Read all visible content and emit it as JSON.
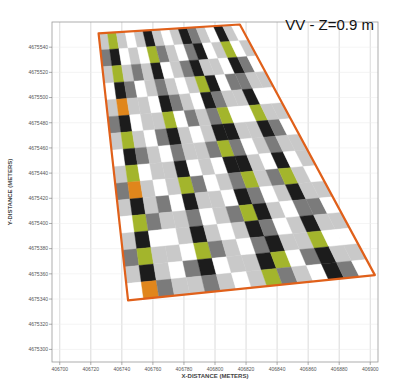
{
  "chart_data": {
    "type": "heatmap",
    "title": "VV - Z=0.9 m",
    "x_label": "X-DISTANCE (METERS)",
    "y_label": "Y-DISTANCE (METERS)",
    "xlim": [
      406695,
      406905
    ],
    "ylim": [
      4675290,
      4675560
    ],
    "xticks": [
      406700,
      406720,
      406740,
      406760,
      406780,
      406800,
      406820,
      406840,
      406860,
      406880,
      406900
    ],
    "yticks": [
      4675300,
      4675320,
      4675340,
      4675360,
      4675380,
      4675400,
      4675420,
      4675440,
      4675460,
      4675480,
      4675500,
      4675520,
      4675540
    ],
    "grid": true,
    "survey_corners": {
      "x": [
        406725,
        406816,
        406903,
        406744
      ],
      "y": [
        4675551,
        4675558,
        4675359,
        4675339
      ]
    },
    "color_range": [
      0,
      5
    ],
    "cells": [
      [
        1,
        4,
        1,
        0,
        1,
        3,
        1,
        0,
        1,
        3,
        2,
        1,
        0,
        3,
        1,
        0
      ],
      [
        2,
        3,
        0,
        1,
        0,
        4,
        2,
        1,
        0,
        2,
        3,
        0,
        1,
        4,
        0,
        1
      ],
      [
        1,
        4,
        1,
        2,
        1,
        3,
        0,
        1,
        2,
        3,
        1,
        1,
        0,
        3,
        2,
        0
      ],
      [
        0,
        3,
        2,
        0,
        1,
        2,
        1,
        0,
        1,
        4,
        3,
        0,
        2,
        2,
        1,
        1
      ],
      [
        1,
        5,
        1,
        1,
        0,
        3,
        2,
        1,
        0,
        3,
        2,
        1,
        1,
        3,
        0,
        0
      ],
      [
        2,
        3,
        0,
        1,
        1,
        4,
        0,
        2,
        1,
        2,
        4,
        0,
        0,
        4,
        1,
        1
      ],
      [
        1,
        4,
        1,
        0,
        2,
        3,
        1,
        0,
        1,
        3,
        3,
        1,
        1,
        3,
        2,
        0
      ],
      [
        0,
        3,
        2,
        1,
        0,
        2,
        1,
        1,
        2,
        4,
        2,
        0,
        1,
        2,
        1,
        1
      ],
      [
        1,
        4,
        0,
        1,
        1,
        3,
        0,
        1,
        0,
        3,
        3,
        1,
        0,
        3,
        0,
        1
      ],
      [
        2,
        5,
        1,
        0,
        1,
        4,
        2,
        0,
        1,
        2,
        4,
        1,
        2,
        4,
        1,
        0
      ],
      [
        1,
        3,
        1,
        2,
        0,
        3,
        1,
        1,
        0,
        3,
        2,
        0,
        1,
        3,
        1,
        1
      ],
      [
        0,
        4,
        2,
        1,
        1,
        2,
        0,
        1,
        2,
        4,
        3,
        1,
        0,
        2,
        2,
        0
      ],
      [
        1,
        3,
        0,
        0,
        1,
        3,
        1,
        0,
        1,
        3,
        2,
        0,
        1,
        3,
        1,
        1
      ],
      [
        2,
        4,
        1,
        1,
        0,
        4,
        2,
        1,
        0,
        2,
        3,
        1,
        1,
        4,
        0,
        0
      ],
      [
        1,
        3,
        1,
        0,
        2,
        3,
        0,
        1,
        1,
        3,
        4,
        0,
        2,
        3,
        1,
        1
      ],
      [
        0,
        5,
        2,
        1,
        1,
        2,
        1,
        0,
        1,
        4,
        2,
        1,
        0,
        3,
        2,
        0
      ]
    ]
  }
}
